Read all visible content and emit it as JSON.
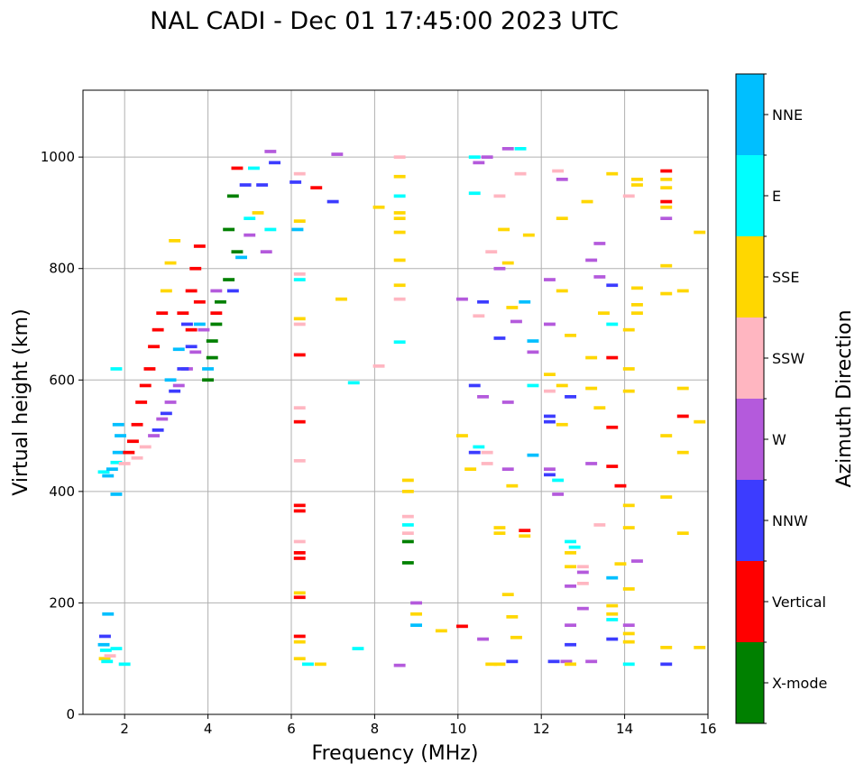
{
  "chart_data": {
    "type": "scatter",
    "title": "NAL CADI - Dec 01 17:45:00 2023 UTC",
    "xlabel": "Frequency (MHz)",
    "ylabel": "Virtual height (km)",
    "xlim": [
      1,
      16
    ],
    "ylim": [
      0,
      1120
    ],
    "xticks": [
      2,
      4,
      6,
      8,
      10,
      12,
      14,
      16
    ],
    "yticks": [
      0,
      200,
      400,
      600,
      800,
      1000
    ],
    "grid": true,
    "colorbar": {
      "label": "Azimuth Direction",
      "categories": [
        {
          "name": "X-mode",
          "color": "#008000"
        },
        {
          "name": "Vertical",
          "color": "#ff0000"
        },
        {
          "name": "NNW",
          "color": "#3c3cff"
        },
        {
          "name": "W",
          "color": "#b45adc"
        },
        {
          "name": "SSW",
          "color": "#ffb6c1"
        },
        {
          "name": "SSE",
          "color": "#ffd700"
        },
        {
          "name": "E",
          "color": "#00ffff"
        },
        {
          "name": "NNE",
          "color": "#00bfff"
        }
      ]
    },
    "segments": [
      [
        1.5,
        125,
        "NNE"
      ],
      [
        1.55,
        115,
        "E"
      ],
      [
        1.52,
        100,
        "SSE"
      ],
      [
        1.6,
        180,
        "NNE"
      ],
      [
        1.53,
        140,
        "NNW"
      ],
      [
        1.58,
        95,
        "E"
      ],
      [
        1.65,
        105,
        "SSW"
      ],
      [
        1.8,
        118,
        "E"
      ],
      [
        2.0,
        90,
        "E"
      ],
      [
        1.5,
        435,
        "E"
      ],
      [
        1.6,
        428,
        "NNE"
      ],
      [
        1.7,
        440,
        "NNE"
      ],
      [
        1.8,
        452,
        "E"
      ],
      [
        1.85,
        470,
        "NNE"
      ],
      [
        1.9,
        500,
        "NNE"
      ],
      [
        1.85,
        520,
        "NNE"
      ],
      [
        1.8,
        620,
        "E"
      ],
      [
        1.8,
        395,
        "NNE"
      ],
      [
        2.0,
        450,
        "SSW"
      ],
      [
        2.1,
        470,
        "Vertical"
      ],
      [
        2.2,
        490,
        "Vertical"
      ],
      [
        2.3,
        520,
        "Vertical"
      ],
      [
        2.4,
        560,
        "Vertical"
      ],
      [
        2.5,
        590,
        "Vertical"
      ],
      [
        2.6,
        620,
        "Vertical"
      ],
      [
        2.7,
        660,
        "Vertical"
      ],
      [
        2.8,
        690,
        "Vertical"
      ],
      [
        2.9,
        720,
        "Vertical"
      ],
      [
        2.3,
        460,
        "SSW"
      ],
      [
        2.5,
        480,
        "SSW"
      ],
      [
        2.7,
        500,
        "W"
      ],
      [
        2.9,
        530,
        "W"
      ],
      [
        3.1,
        560,
        "W"
      ],
      [
        3.3,
        590,
        "W"
      ],
      [
        3.5,
        620,
        "W"
      ],
      [
        3.7,
        650,
        "W"
      ],
      [
        3.9,
        690,
        "W"
      ],
      [
        2.8,
        510,
        "NNW"
      ],
      [
        3.0,
        540,
        "NNW"
      ],
      [
        3.2,
        580,
        "NNW"
      ],
      [
        3.4,
        620,
        "NNW"
      ],
      [
        3.6,
        660,
        "NNW"
      ],
      [
        3.5,
        700,
        "NNW"
      ],
      [
        3.3,
        655,
        "NNE"
      ],
      [
        3.1,
        600,
        "NNE"
      ],
      [
        3.0,
        760,
        "SSE"
      ],
      [
        3.1,
        810,
        "SSE"
      ],
      [
        3.2,
        850,
        "SSE"
      ],
      [
        3.4,
        720,
        "Vertical"
      ],
      [
        3.6,
        760,
        "Vertical"
      ],
      [
        3.7,
        800,
        "Vertical"
      ],
      [
        3.8,
        840,
        "Vertical"
      ],
      [
        3.6,
        690,
        "Vertical"
      ],
      [
        3.8,
        740,
        "Vertical"
      ],
      [
        4.0,
        600,
        "X-mode"
      ],
      [
        4.1,
        640,
        "X-mode"
      ],
      [
        4.1,
        670,
        "X-mode"
      ],
      [
        4.2,
        700,
        "X-mode"
      ],
      [
        4.3,
        740,
        "X-mode"
      ],
      [
        4.5,
        780,
        "X-mode"
      ],
      [
        4.7,
        830,
        "X-mode"
      ],
      [
        4.5,
        870,
        "X-mode"
      ],
      [
        4.6,
        930,
        "X-mode"
      ],
      [
        4.0,
        620,
        "NNE"
      ],
      [
        3.8,
        700,
        "NNE"
      ],
      [
        4.2,
        760,
        "W"
      ],
      [
        4.2,
        720,
        "Vertical"
      ],
      [
        4.6,
        760,
        "NNW"
      ],
      [
        4.8,
        820,
        "NNE"
      ],
      [
        5.0,
        860,
        "W"
      ],
      [
        5.2,
        900,
        "SSE"
      ],
      [
        5.3,
        950,
        "NNW"
      ],
      [
        5.5,
        1010,
        "W"
      ],
      [
        5.1,
        980,
        "E"
      ],
      [
        4.9,
        950,
        "NNW"
      ],
      [
        5.6,
        990,
        "NNW"
      ],
      [
        5.0,
        890,
        "E"
      ],
      [
        5.4,
        830,
        "W"
      ],
      [
        5.5,
        870,
        "E"
      ],
      [
        4.7,
        980,
        "Vertical"
      ],
      [
        6.1,
        955,
        "NNW"
      ],
      [
        6.2,
        970,
        "SSW"
      ],
      [
        6.15,
        870,
        "NNE"
      ],
      [
        6.2,
        885,
        "SSE"
      ],
      [
        6.2,
        790,
        "SSW"
      ],
      [
        6.2,
        780,
        "E"
      ],
      [
        6.2,
        710,
        "SSE"
      ],
      [
        6.2,
        700,
        "SSW"
      ],
      [
        6.2,
        645,
        "Vertical"
      ],
      [
        6.2,
        550,
        "SSW"
      ],
      [
        6.2,
        525,
        "Vertical"
      ],
      [
        6.2,
        455,
        "SSW"
      ],
      [
        6.2,
        375,
        "Vertical"
      ],
      [
        6.2,
        365,
        "Vertical"
      ],
      [
        6.2,
        310,
        "SSW"
      ],
      [
        6.2,
        290,
        "Vertical"
      ],
      [
        6.2,
        280,
        "Vertical"
      ],
      [
        6.2,
        218,
        "SSE"
      ],
      [
        6.2,
        210,
        "Vertical"
      ],
      [
        6.2,
        140,
        "Vertical"
      ],
      [
        6.2,
        130,
        "SSE"
      ],
      [
        6.2,
        100,
        "SSE"
      ],
      [
        6.4,
        90,
        "E"
      ],
      [
        6.7,
        90,
        "SSE"
      ],
      [
        6.6,
        945,
        "Vertical"
      ],
      [
        7.0,
        920,
        "NNW"
      ],
      [
        7.1,
        1005,
        "W"
      ],
      [
        7.2,
        745,
        "SSE"
      ],
      [
        7.5,
        595,
        "E"
      ],
      [
        7.6,
        118,
        "E"
      ],
      [
        8.1,
        910,
        "SSE"
      ],
      [
        8.1,
        625,
        "SSW"
      ],
      [
        8.6,
        1000,
        "SSW"
      ],
      [
        8.6,
        965,
        "SSE"
      ],
      [
        8.6,
        930,
        "E"
      ],
      [
        8.6,
        900,
        "SSE"
      ],
      [
        8.6,
        890,
        "SSE"
      ],
      [
        8.6,
        865,
        "SSE"
      ],
      [
        8.6,
        815,
        "SSE"
      ],
      [
        8.6,
        770,
        "SSE"
      ],
      [
        8.6,
        745,
        "SSW"
      ],
      [
        8.6,
        668,
        "E"
      ],
      [
        8.8,
        420,
        "SSE"
      ],
      [
        8.8,
        400,
        "SSE"
      ],
      [
        8.8,
        355,
        "SSW"
      ],
      [
        8.8,
        340,
        "E"
      ],
      [
        8.8,
        325,
        "SSW"
      ],
      [
        8.8,
        310,
        "X-mode"
      ],
      [
        8.8,
        272,
        "X-mode"
      ],
      [
        8.6,
        88,
        "W"
      ],
      [
        9.0,
        200,
        "W"
      ],
      [
        9.0,
        180,
        "SSE"
      ],
      [
        9.0,
        160,
        "NNE"
      ],
      [
        9.6,
        150,
        "SSE"
      ],
      [
        10.1,
        158,
        "Vertical"
      ],
      [
        10.4,
        1000,
        "E"
      ],
      [
        10.4,
        935,
        "E"
      ],
      [
        10.5,
        990,
        "W"
      ],
      [
        10.5,
        715,
        "SSW"
      ],
      [
        10.6,
        740,
        "NNW"
      ],
      [
        10.1,
        745,
        "W"
      ],
      [
        10.4,
        590,
        "NNW"
      ],
      [
        10.6,
        570,
        "W"
      ],
      [
        10.4,
        470,
        "NNW"
      ],
      [
        10.3,
        440,
        "SSE"
      ],
      [
        10.1,
        500,
        "SSE"
      ],
      [
        10.5,
        480,
        "E"
      ],
      [
        10.7,
        470,
        "SSW"
      ],
      [
        10.7,
        450,
        "SSW"
      ],
      [
        10.8,
        90,
        "SSE"
      ],
      [
        11.0,
        90,
        "SSE"
      ],
      [
        10.6,
        135,
        "W"
      ],
      [
        11.0,
        675,
        "NNW"
      ],
      [
        10.8,
        830,
        "SSW"
      ],
      [
        11.0,
        800,
        "W"
      ],
      [
        11.0,
        930,
        "SSW"
      ],
      [
        10.7,
        1000,
        "W"
      ],
      [
        11.2,
        1015,
        "W"
      ],
      [
        11.5,
        1015,
        "E"
      ],
      [
        11.5,
        970,
        "SSW"
      ],
      [
        11.2,
        560,
        "W"
      ],
      [
        11.2,
        440,
        "W"
      ],
      [
        11.0,
        335,
        "SSE"
      ],
      [
        11.0,
        325,
        "SSE"
      ],
      [
        11.2,
        215,
        "SSE"
      ],
      [
        11.3,
        175,
        "SSE"
      ],
      [
        11.4,
        138,
        "SSE"
      ],
      [
        11.3,
        95,
        "NNW"
      ],
      [
        11.3,
        410,
        "SSE"
      ],
      [
        11.6,
        330,
        "Vertical"
      ],
      [
        11.6,
        320,
        "SSE"
      ],
      [
        11.3,
        730,
        "SSE"
      ],
      [
        11.4,
        705,
        "W"
      ],
      [
        11.6,
        740,
        "NNE"
      ],
      [
        11.7,
        860,
        "SSE"
      ],
      [
        11.8,
        670,
        "NNE"
      ],
      [
        11.8,
        650,
        "W"
      ],
      [
        11.8,
        465,
        "NNE"
      ],
      [
        11.8,
        590,
        "E"
      ],
      [
        11.1,
        870,
        "SSE"
      ],
      [
        11.2,
        810,
        "SSE"
      ],
      [
        12.2,
        780,
        "W"
      ],
      [
        12.2,
        700,
        "W"
      ],
      [
        12.2,
        610,
        "SSE"
      ],
      [
        12.2,
        580,
        "SSW"
      ],
      [
        12.2,
        535,
        "NNW"
      ],
      [
        12.2,
        525,
        "NNW"
      ],
      [
        12.2,
        440,
        "W"
      ],
      [
        12.2,
        430,
        "NNW"
      ],
      [
        12.4,
        420,
        "E"
      ],
      [
        12.4,
        395,
        "W"
      ],
      [
        12.5,
        520,
        "SSE"
      ],
      [
        12.5,
        590,
        "SSE"
      ],
      [
        12.7,
        570,
        "NNW"
      ],
      [
        12.5,
        890,
        "SSE"
      ],
      [
        12.5,
        960,
        "W"
      ],
      [
        12.4,
        975,
        "SSW"
      ],
      [
        12.5,
        760,
        "SSE"
      ],
      [
        12.7,
        680,
        "SSE"
      ],
      [
        12.8,
        300,
        "E"
      ],
      [
        12.7,
        310,
        "E"
      ],
      [
        12.7,
        290,
        "SSE"
      ],
      [
        12.7,
        265,
        "SSE"
      ],
      [
        12.7,
        230,
        "W"
      ],
      [
        12.7,
        160,
        "W"
      ],
      [
        12.7,
        125,
        "NNW"
      ],
      [
        12.6,
        95,
        "W"
      ],
      [
        12.7,
        90,
        "SSE"
      ],
      [
        12.3,
        95,
        "NNW"
      ],
      [
        13.0,
        255,
        "W"
      ],
      [
        13.0,
        265,
        "SSW"
      ],
      [
        13.0,
        235,
        "SSW"
      ],
      [
        13.0,
        190,
        "W"
      ],
      [
        13.2,
        450,
        "W"
      ],
      [
        13.2,
        585,
        "SSE"
      ],
      [
        13.2,
        640,
        "SSE"
      ],
      [
        13.1,
        920,
        "SSE"
      ],
      [
        13.2,
        815,
        "W"
      ],
      [
        13.4,
        845,
        "W"
      ],
      [
        13.4,
        785,
        "W"
      ],
      [
        13.5,
        720,
        "SSE"
      ],
      [
        13.4,
        550,
        "SSE"
      ],
      [
        13.4,
        340,
        "SSW"
      ],
      [
        13.7,
        970,
        "SSE"
      ],
      [
        13.7,
        770,
        "NNW"
      ],
      [
        13.7,
        700,
        "E"
      ],
      [
        13.7,
        640,
        "Vertical"
      ],
      [
        13.7,
        515,
        "Vertical"
      ],
      [
        13.7,
        445,
        "Vertical"
      ],
      [
        13.7,
        245,
        "NNE"
      ],
      [
        13.7,
        195,
        "SSE"
      ],
      [
        13.7,
        180,
        "SSE"
      ],
      [
        13.7,
        170,
        "E"
      ],
      [
        13.7,
        135,
        "NNW"
      ],
      [
        13.2,
        95,
        "W"
      ],
      [
        13.9,
        410,
        "Vertical"
      ],
      [
        13.9,
        270,
        "SSE"
      ],
      [
        14.1,
        930,
        "SSW"
      ],
      [
        14.1,
        690,
        "SSE"
      ],
      [
        14.1,
        620,
        "SSE"
      ],
      [
        14.1,
        580,
        "SSE"
      ],
      [
        14.1,
        375,
        "SSE"
      ],
      [
        14.1,
        335,
        "SSE"
      ],
      [
        14.1,
        225,
        "SSE"
      ],
      [
        14.1,
        160,
        "W"
      ],
      [
        14.1,
        145,
        "SSE"
      ],
      [
        14.1,
        130,
        "SSE"
      ],
      [
        14.1,
        90,
        "E"
      ],
      [
        14.3,
        950,
        "SSE"
      ],
      [
        14.3,
        960,
        "SSE"
      ],
      [
        14.3,
        765,
        "SSE"
      ],
      [
        14.3,
        735,
        "SSE"
      ],
      [
        14.3,
        720,
        "SSE"
      ],
      [
        14.3,
        275,
        "W"
      ],
      [
        15.0,
        975,
        "Vertical"
      ],
      [
        15.0,
        960,
        "SSE"
      ],
      [
        15.0,
        945,
        "SSE"
      ],
      [
        15.0,
        920,
        "Vertical"
      ],
      [
        15.0,
        910,
        "SSE"
      ],
      [
        15.0,
        890,
        "W"
      ],
      [
        15.0,
        805,
        "SSE"
      ],
      [
        15.0,
        755,
        "SSE"
      ],
      [
        15.4,
        760,
        "SSE"
      ],
      [
        15.4,
        585,
        "SSE"
      ],
      [
        15.4,
        535,
        "Vertical"
      ],
      [
        15.0,
        500,
        "SSE"
      ],
      [
        15.4,
        470,
        "SSE"
      ],
      [
        15.0,
        390,
        "SSE"
      ],
      [
        15.4,
        325,
        "SSE"
      ],
      [
        15.0,
        120,
        "SSE"
      ],
      [
        15.0,
        90,
        "NNW"
      ],
      [
        15.8,
        865,
        "SSE"
      ],
      [
        15.8,
        525,
        "SSE"
      ],
      [
        15.8,
        120,
        "SSE"
      ]
    ]
  }
}
